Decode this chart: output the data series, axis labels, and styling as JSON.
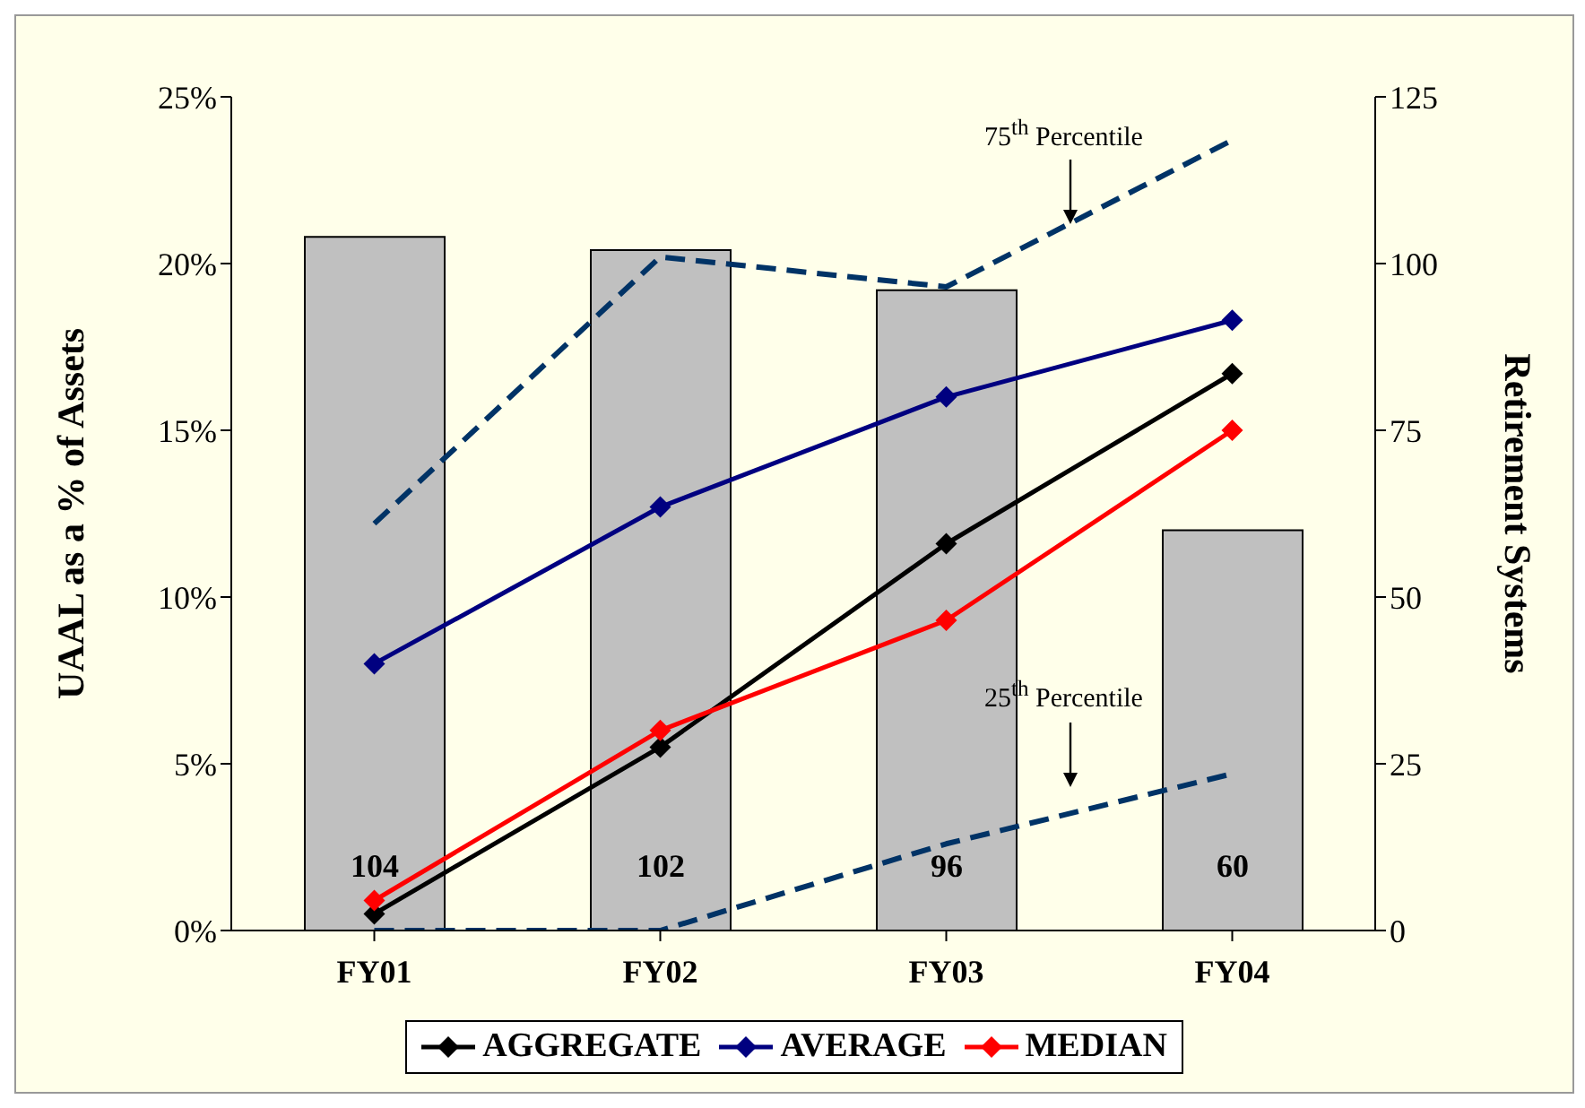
{
  "chart_data": {
    "type": "bar",
    "categories": [
      "FY01",
      "FY02",
      "FY03",
      "FY04"
    ],
    "ylabel": "UAAL as a % of Assets",
    "y2label": "Retirement Systems",
    "ylim": [
      0,
      25
    ],
    "yticks": [
      {
        "value": 0,
        "label": "0%"
      },
      {
        "value": 5,
        "label": "5%"
      },
      {
        "value": 10,
        "label": "10%"
      },
      {
        "value": 15,
        "label": "15%"
      },
      {
        "value": 20,
        "label": "20%"
      },
      {
        "value": 25,
        "label": "25%"
      }
    ],
    "y2lim": [
      0,
      125
    ],
    "y2ticks": [
      0,
      25,
      50,
      75,
      100,
      125
    ],
    "series": [
      {
        "axis": "y2",
        "color": "#c0c0c0",
        "values": [
          104,
          102,
          96,
          60
        ],
        "data_labels": true
      },
      {
        "type": "line",
        "name": "AGGREGATE",
        "color": "#000000",
        "marker": "diamond",
        "values": [
          0.5,
          5.5,
          11.6,
          16.7
        ]
      },
      {
        "type": "line",
        "name": "AVERAGE",
        "color": "#000080",
        "marker": "diamond",
        "values": [
          8.0,
          12.7,
          16.0,
          18.3
        ]
      },
      {
        "type": "line",
        "name": "MEDIAN",
        "color": "#ff0000",
        "marker": "diamond",
        "values": [
          0.9,
          6.0,
          9.3,
          15.0
        ]
      },
      {
        "type": "line",
        "color": "#003366",
        "line_style": "dashed",
        "marker": "none",
        "values": [
          12.2,
          20.2,
          19.3,
          23.7
        ]
      },
      {
        "type": "line",
        "color": "#003366",
        "line_style": "dashed",
        "marker": "none",
        "values": [
          0,
          0,
          2.6,
          4.7
        ]
      }
    ],
    "annotations": [
      "75$^{th}$ Percentile",
      "25$^{th}$ Percentile"
    ],
    "legend": "bottom"
  }
}
